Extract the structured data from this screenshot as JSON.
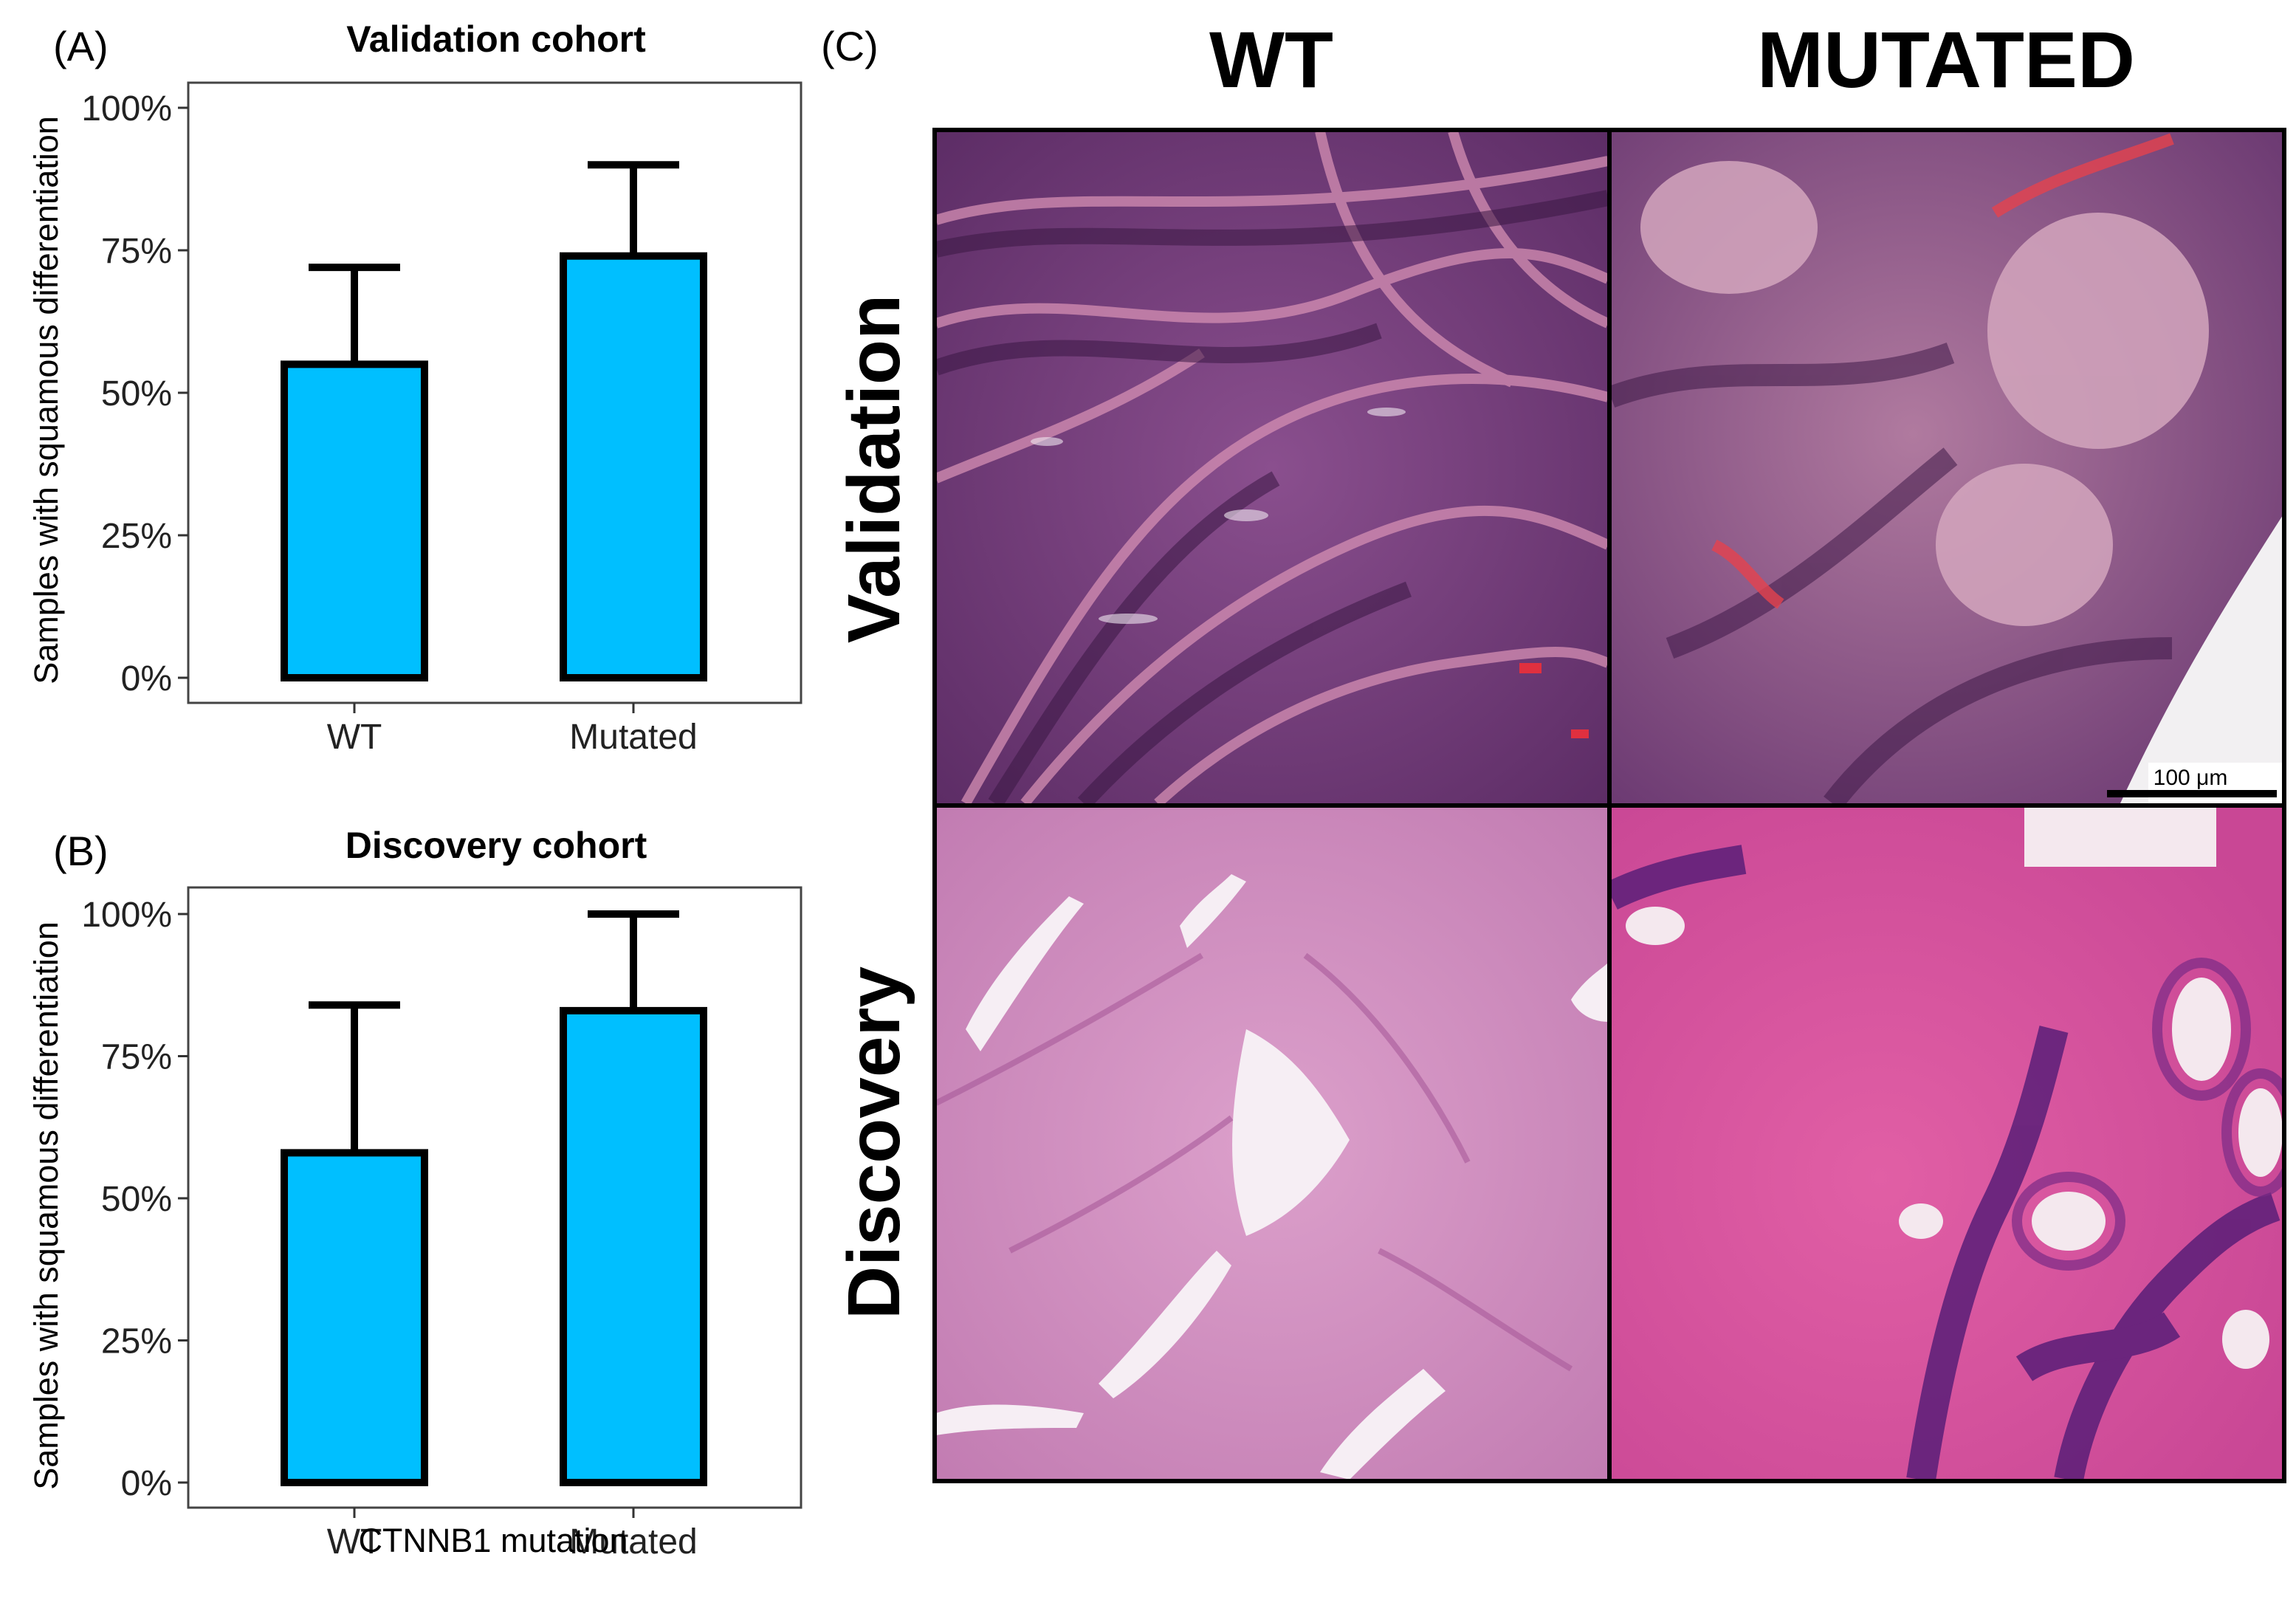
{
  "panels": {
    "a_label": "(A)",
    "b_label": "(B)",
    "c_label": "(C)"
  },
  "chart_data": [
    {
      "type": "bar",
      "title": "Validation cohort",
      "xlabel": "",
      "ylabel": "Samples with squamous differentiation",
      "categories": [
        "WT",
        "Mutated"
      ],
      "values": [
        55,
        74
      ],
      "error_upper": [
        72,
        90
      ],
      "ylim": [
        0,
        100
      ],
      "yticks": [
        "0%",
        "25%",
        "50%",
        "75%",
        "100%"
      ],
      "bar_color": "#00BFFF",
      "grid": false
    },
    {
      "type": "bar",
      "title": "Discovery cohort",
      "xlabel": "CTNNB1 mutation",
      "ylabel": "Samples with squamous differentiation",
      "categories": [
        "WT",
        "Mutated"
      ],
      "values": [
        58,
        83
      ],
      "error_upper": [
        84,
        100
      ],
      "ylim": [
        0,
        100
      ],
      "yticks": [
        "0%",
        "25%",
        "50%",
        "75%",
        "100%"
      ],
      "bar_color": "#00BFFF",
      "grid": false
    }
  ],
  "histology": {
    "columns": [
      "WT",
      "MUTATED"
    ],
    "rows": [
      "Validation",
      "Discovery"
    ],
    "scale_bar": "100 μm"
  }
}
